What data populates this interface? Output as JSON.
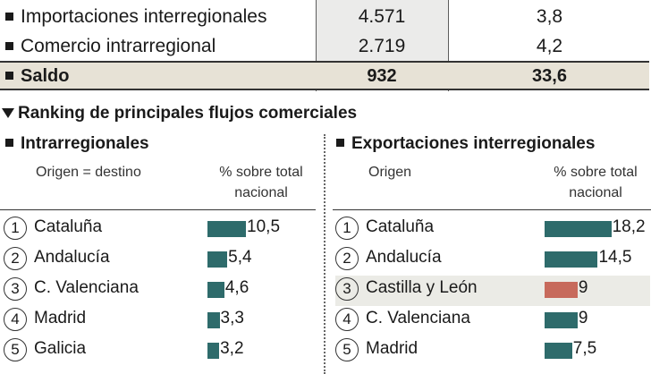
{
  "colors": {
    "bar": "#2e6b6b",
    "highlight_bar": "#c76a5c",
    "highlight_row": "#ebebe6",
    "saldo_bg": "#e7e2d6"
  },
  "table": {
    "rows": [
      {
        "label": "Importaciones interregionales",
        "value1": "4.571",
        "value2": "3,8"
      },
      {
        "label": "Comercio intrarregional",
        "value1": "2.719",
        "value2": "4,2"
      }
    ],
    "saldo": {
      "label": "Saldo",
      "value1": "932",
      "value2": "33,6"
    }
  },
  "ranking_title": "Ranking de principales flujos comerciales",
  "chart_data": [
    {
      "type": "bar",
      "title": "Intrarregionales",
      "category_header": "Origen = destino",
      "value_header": "% sobre total nacional",
      "categories": [
        "Cataluña",
        "Andalucía",
        "C. Valenciana",
        "Madrid",
        "Galicia"
      ],
      "ranks": [
        "1",
        "2",
        "3",
        "4",
        "5"
      ],
      "values": [
        10.5,
        5.4,
        4.6,
        3.3,
        3.2
      ],
      "labels": [
        "10,5",
        "5,4",
        "4,6",
        "3,3",
        "3,2"
      ]
    },
    {
      "type": "bar",
      "title": "Exportaciones interregionales",
      "category_header": "Origen",
      "value_header": "% sobre total nacional",
      "categories": [
        "Cataluña",
        "Andalucía",
        "Castilla y León",
        "C. Valenciana",
        "Madrid"
      ],
      "ranks": [
        "1",
        "2",
        "3",
        "4",
        "5"
      ],
      "values": [
        18.2,
        14.5,
        9,
        9,
        7.5
      ],
      "labels": [
        "18,2",
        "14,5",
        "9",
        "9",
        "7,5"
      ],
      "highlight_index": 2
    }
  ]
}
